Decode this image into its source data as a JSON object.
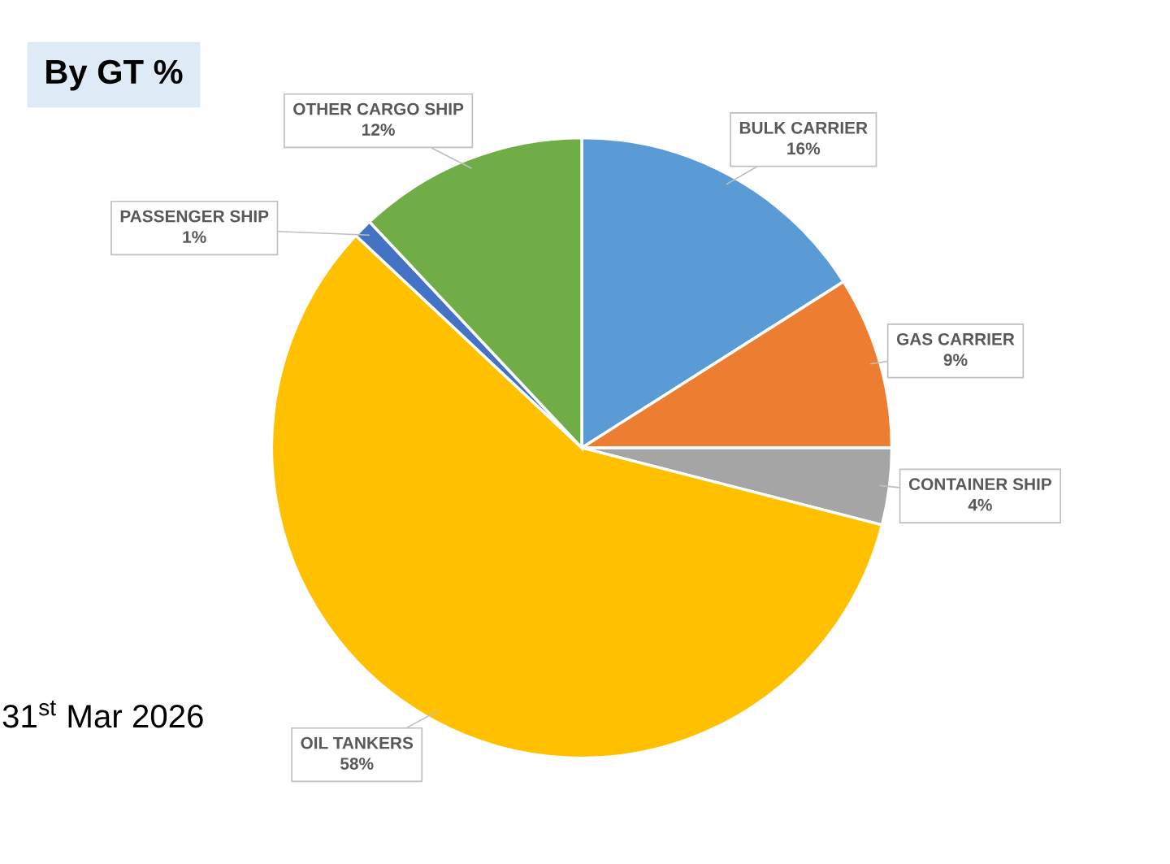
{
  "chart_data": {
    "type": "pie",
    "title": "By GT %",
    "categories": [
      "BULK CARRIER",
      "GAS CARRIER",
      "CONTAINER SHIP",
      "OIL TANKERS",
      "PASSENGER SHIP",
      "OTHER CARGO SHIP"
    ],
    "values": [
      16,
      9,
      4,
      58,
      1,
      12
    ],
    "value_labels": [
      "16%",
      "9%",
      "4%",
      "58%",
      "1%",
      "12%"
    ],
    "colors": [
      "#5b9bd5",
      "#ed7d31",
      "#a5a5a5",
      "#ffc000",
      "#4472c4",
      "#70ad47"
    ],
    "annotations": [
      "31$^{st}$ Mar 2026"
    ],
    "legend": false
  }
}
